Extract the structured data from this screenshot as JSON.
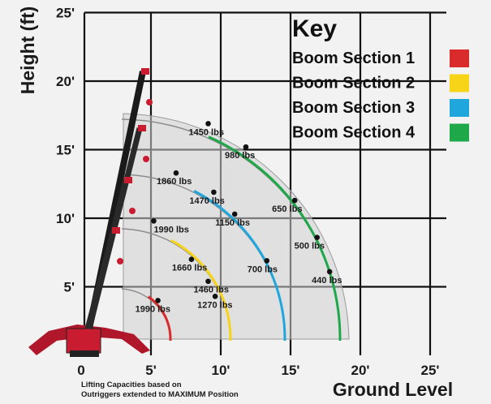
{
  "chart_data": {
    "type": "load-chart",
    "xlabel": "Ground Level",
    "ylabel": "Height (ft)",
    "xlim": [
      0,
      25
    ],
    "ylim": [
      0,
      25
    ],
    "x_ticks": [
      "0",
      "5'",
      "10'",
      "15'",
      "20'",
      "25'"
    ],
    "y_ticks": [
      "5'",
      "10'",
      "15'",
      "20'",
      "25'"
    ],
    "grid": true,
    "legend": {
      "title": "Key",
      "position": "top-right",
      "items": [
        {
          "label": "Boom Section 1",
          "color": "#d92b2b"
        },
        {
          "label": "Boom Section 2",
          "color": "#f7d418"
        },
        {
          "label": "Boom Section 3",
          "color": "#1fa7dd"
        },
        {
          "label": "Boom Section 4",
          "color": "#1ea84a"
        }
      ]
    },
    "series": [
      {
        "name": "Boom Section 1",
        "color": "#d92b2b",
        "points": [
          {
            "x": 5.5,
            "y": 4.0,
            "label": "1990 lbs"
          }
        ]
      },
      {
        "name": "Boom Section 2",
        "color": "#f7d418",
        "points": [
          {
            "x": 5.2,
            "y": 9.8,
            "label": "1990 lbs"
          },
          {
            "x": 7.9,
            "y": 7.0,
            "label": "1660 lbs"
          },
          {
            "x": 9.1,
            "y": 5.4,
            "label": "1460 lbs"
          },
          {
            "x": 9.6,
            "y": 4.3,
            "label": "1270 lbs"
          }
        ]
      },
      {
        "name": "Boom Section 3",
        "color": "#1fa7dd",
        "points": [
          {
            "x": 6.8,
            "y": 13.3,
            "label": "1860 lbs"
          },
          {
            "x": 9.5,
            "y": 11.9,
            "label": "1470 lbs"
          },
          {
            "x": 11.0,
            "y": 10.3,
            "label": "1150 lbs"
          },
          {
            "x": 13.3,
            "y": 6.9,
            "label": "700 lbs"
          }
        ]
      },
      {
        "name": "Boom Section 4",
        "color": "#1ea84a",
        "points": [
          {
            "x": 9.1,
            "y": 16.9,
            "label": "1450 lbs"
          },
          {
            "x": 11.8,
            "y": 15.2,
            "label": "980 lbs"
          },
          {
            "x": 15.3,
            "y": 11.3,
            "label": "650 lbs"
          },
          {
            "x": 16.9,
            "y": 8.6,
            "label": "500 lbs"
          },
          {
            "x": 17.8,
            "y": 6.1,
            "label": "440 lbs"
          }
        ]
      }
    ],
    "note": [
      "Lifting Capacities based on",
      "Outriggers extended to MAXIMUM Position"
    ]
  }
}
